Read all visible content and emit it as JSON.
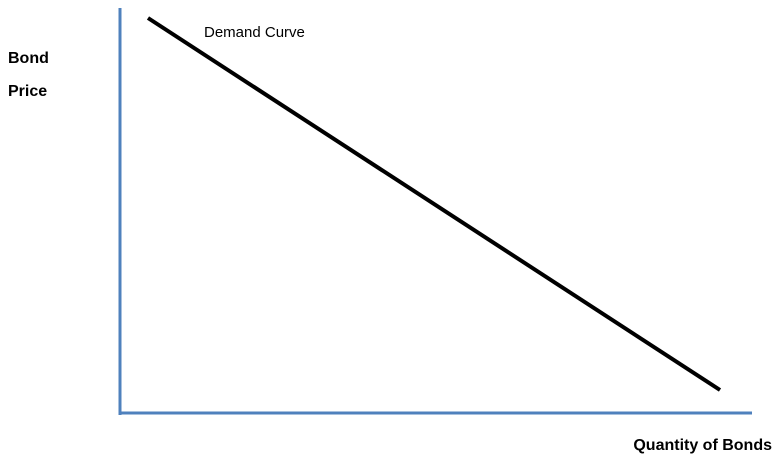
{
  "y_axis_label": [
    "Bond",
    "Price"
  ],
  "x_axis_label": "Quantity of Bonds",
  "curve_label": "Demand Curve"
}
